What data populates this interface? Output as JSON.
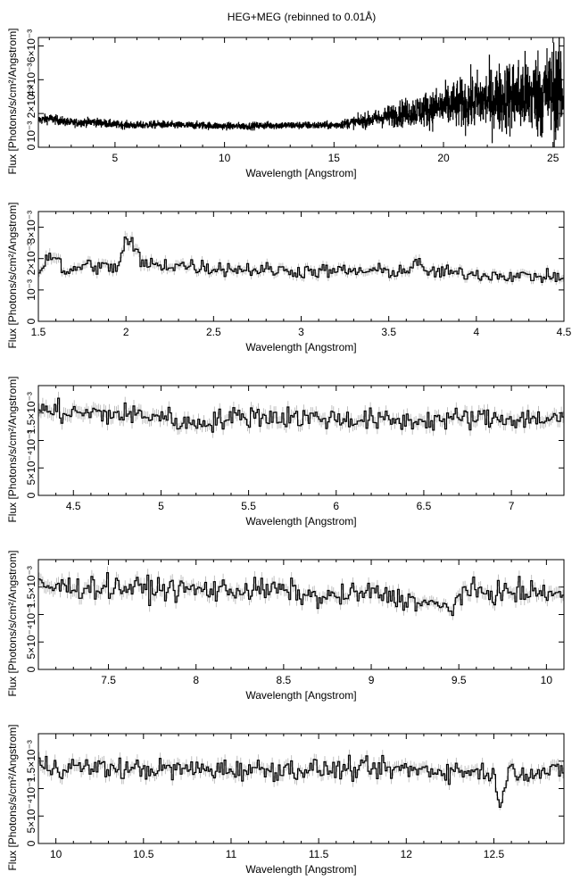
{
  "figure_title": "HEG+MEG (rebinned to 0.01Å)",
  "colors": {
    "spectrum": "#000000",
    "errorbar": "#b0b0b0",
    "axes": "#000000",
    "background": "#ffffff"
  },
  "chart_data": [
    {
      "type": "line",
      "title": "HEG+MEG (rebinned to 0.01Å)",
      "xlabel": "Wavelength [Angstrom]",
      "ylabel": "Flux [Photons/s/cm²/Angstrom]",
      "xlim": [
        1.5,
        25.5
      ],
      "ylim": [
        0,
        0.0065
      ],
      "xticks": [
        5,
        10,
        15,
        20,
        25
      ],
      "xtick_labels": [
        "5",
        "10",
        "15",
        "20",
        "25"
      ],
      "yticks": [
        0,
        0.002,
        0.004,
        0.006
      ],
      "ytick_labels": [
        "0",
        "10⁻³ 2×10⁻³",
        "4×10⁻³",
        "6×10⁻³"
      ],
      "grid": false,
      "style": "histogram",
      "series": [
        {
          "x": [
            1.5,
            2,
            3,
            4,
            5,
            6,
            7,
            8,
            9,
            10,
            11,
            12,
            13,
            14,
            15,
            16,
            17,
            18,
            19,
            20,
            21,
            22,
            23,
            24,
            25,
            25.5
          ],
          "values": [
            0.0016,
            0.0017,
            0.00145,
            0.0015,
            0.00135,
            0.0013,
            0.00135,
            0.0013,
            0.0013,
            0.00125,
            0.00125,
            0.0013,
            0.0013,
            0.0013,
            0.0013,
            0.0015,
            0.0017,
            0.002,
            0.0022,
            0.0024,
            0.0026,
            0.0028,
            0.003,
            0.0031,
            0.0033,
            0.0034
          ]
        }
      ]
    },
    {
      "type": "line",
      "xlabel": "Wavelength [Angstrom]",
      "ylabel": "Flux [Photons/s/cm²/Angstrom]",
      "xlim": [
        1.5,
        4.5
      ],
      "ylim": [
        0,
        0.0035
      ],
      "xticks": [
        1.5,
        2,
        2.5,
        3,
        3.5,
        4,
        4.5
      ],
      "xtick_labels": [
        "1.5",
        "2",
        "2.5",
        "3",
        "3.5",
        "4",
        "4.5"
      ],
      "yticks": [
        0,
        0.001,
        0.002,
        0.003
      ],
      "ytick_labels": [
        "0",
        "10⁻³",
        "2×10⁻³",
        "3×10⁻³"
      ],
      "grid": false,
      "style": "histogram",
      "series": [
        {
          "x": [
            1.5,
            1.55,
            1.6,
            1.65,
            1.7,
            1.8,
            1.9,
            1.95,
            2.0,
            2.05,
            2.1,
            2.3,
            2.5,
            3.0,
            3.5,
            3.6,
            3.65,
            3.7,
            4.0,
            4.5
          ],
          "values": [
            0.0016,
            0.002,
            0.0022,
            0.0014,
            0.0017,
            0.0018,
            0.0017,
            0.0017,
            0.0026,
            0.0023,
            0.0018,
            0.0018,
            0.0017,
            0.0016,
            0.0016,
            0.0016,
            0.0019,
            0.0016,
            0.0015,
            0.0014
          ]
        }
      ]
    },
    {
      "type": "line",
      "xlabel": "Wavelength [Angstrom]",
      "ylabel": "Flux [Photons/s/cm²/Angstrom]",
      "xlim": [
        4.3,
        7.3
      ],
      "ylim": [
        0,
        0.002
      ],
      "xticks": [
        4.5,
        5,
        5.5,
        6,
        6.5,
        7
      ],
      "xtick_labels": [
        "4.5",
        "5",
        "5.5",
        "6",
        "6.5",
        "7"
      ],
      "yticks": [
        0,
        0.0005,
        0.001,
        0.0015
      ],
      "ytick_labels": [
        "0",
        "5×10⁻⁴",
        "10⁻³",
        "1.5×10⁻³"
      ],
      "grid": false,
      "style": "histogram",
      "series": [
        {
          "x": [
            4.3,
            4.5,
            5.0,
            5.15,
            5.5,
            6.0,
            6.4,
            6.7,
            7.0,
            7.3
          ],
          "values": [
            0.00155,
            0.0015,
            0.00145,
            0.0013,
            0.00145,
            0.0014,
            0.00135,
            0.0014,
            0.0014,
            0.0014
          ]
        }
      ]
    },
    {
      "type": "line",
      "xlabel": "Wavelength [Angstrom]",
      "ylabel": "Flux [Photons/s/cm²/Angstrom]",
      "xlim": [
        7.1,
        10.1
      ],
      "ylim": [
        0,
        0.002
      ],
      "xticks": [
        7.5,
        8,
        8.5,
        9,
        9.5,
        10
      ],
      "xtick_labels": [
        "7.5",
        "8",
        "8.5",
        "9",
        "9.5",
        "10"
      ],
      "yticks": [
        0,
        0.0005,
        0.001,
        0.0015
      ],
      "ytick_labels": [
        "0",
        "5×10⁻⁴",
        "10⁻³",
        "1.5×10⁻³"
      ],
      "grid": false,
      "style": "histogram",
      "series": [
        {
          "x": [
            7.1,
            7.5,
            8.0,
            8.5,
            8.7,
            9.0,
            9.47,
            9.5,
            10.0,
            10.1
          ],
          "values": [
            0.0015,
            0.0015,
            0.00145,
            0.00145,
            0.0013,
            0.0014,
            0.0011,
            0.0014,
            0.0014,
            0.00135
          ]
        }
      ]
    },
    {
      "type": "line",
      "xlabel": "Wavelength [Angstrom]",
      "ylabel": "Flux [Photons/s/cm²/Angstrom]",
      "xlim": [
        9.9,
        12.9
      ],
      "ylim": [
        0,
        0.002
      ],
      "xticks": [
        10,
        10.5,
        11,
        11.5,
        12,
        12.5
      ],
      "xtick_labels": [
        "10",
        "10.5",
        "11",
        "11.5",
        "12",
        "12.5"
      ],
      "yticks": [
        0,
        0.0005,
        0.001,
        0.0015
      ],
      "ytick_labels": [
        "0",
        "5×10⁻⁴",
        "10⁻³",
        "1.5×10⁻³"
      ],
      "grid": false,
      "style": "histogram",
      "series": [
        {
          "x": [
            9.9,
            10.0,
            10.5,
            11.0,
            11.5,
            12.0,
            12.5,
            12.53,
            12.56,
            12.6,
            12.7,
            12.9
          ],
          "values": [
            0.0014,
            0.0014,
            0.00135,
            0.00135,
            0.00135,
            0.00135,
            0.0013,
            0.0006,
            0.0011,
            0.00135,
            0.0013,
            0.0013
          ]
        }
      ]
    }
  ]
}
